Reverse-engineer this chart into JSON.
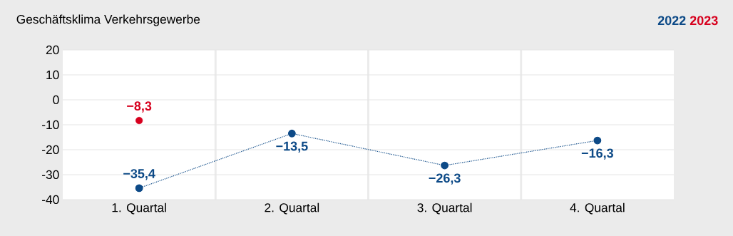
{
  "chart_data": {
    "type": "line",
    "title": "Geschäftsklima Verkehrsgewerbe",
    "categories": [
      "1. Quartal",
      "2. Quartal",
      "3. Quartal",
      "4. Quartal"
    ],
    "series": [
      {
        "name": "2022",
        "color": "#0d4a87",
        "line_style": "dotted",
        "values": [
          -35.4,
          -13.5,
          -26.3,
          -16.3
        ],
        "value_labels": [
          "−35,4",
          "−13,5",
          "−26,3",
          "−16,3"
        ]
      },
      {
        "name": "2023",
        "color": "#d7001e",
        "type": "scatter",
        "values": [
          -8.3,
          null,
          null,
          null
        ],
        "value_labels": [
          "−8,3",
          null,
          null,
          null
        ]
      }
    ],
    "ylim": [
      -40,
      20
    ],
    "yticks": [
      -40,
      -30,
      -20,
      -10,
      0,
      10,
      20
    ],
    "grid": "y",
    "legend": "top right",
    "marker": "circle"
  }
}
